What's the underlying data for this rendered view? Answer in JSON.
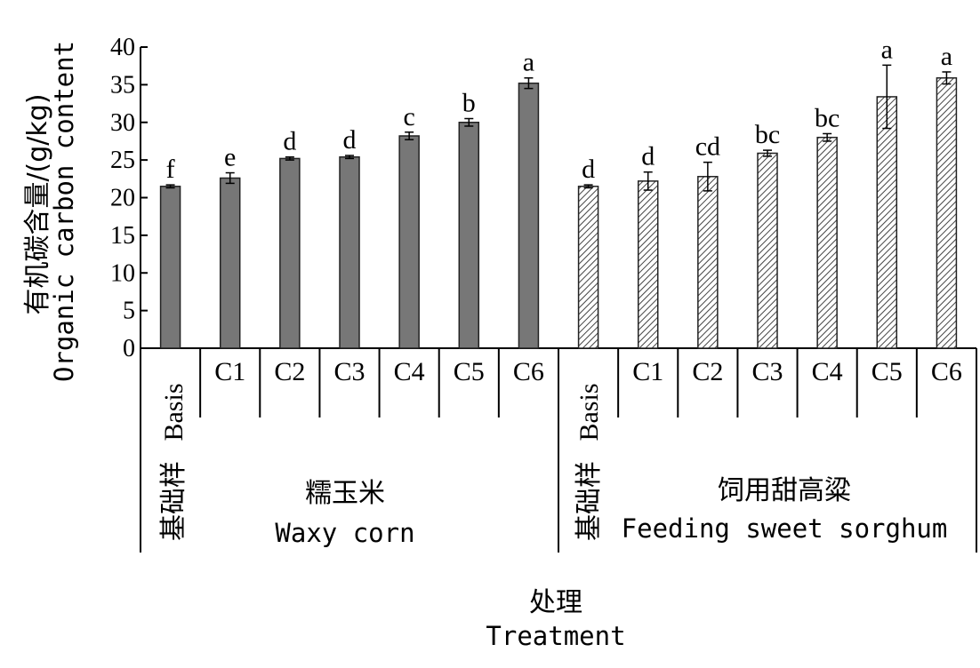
{
  "chart_data": {
    "type": "bar",
    "ylabel_cn": "有机碳含量/(g/kg)",
    "ylabel_en": "Organic carbon content",
    "xlabel_cn": "处理",
    "xlabel_en": "Treatment",
    "ylim": [
      0,
      40
    ],
    "yticks": [
      "0",
      "5",
      "10",
      "15",
      "20",
      "25",
      "30",
      "35",
      "40"
    ],
    "grid": false,
    "basis_label_cn": "基础样",
    "basis_label_en": "Basis",
    "groups": [
      {
        "name_cn": "糯玉米",
        "name_en": "Waxy corn",
        "fill": "#777777",
        "pattern": "solid",
        "categories": [
          "Basis",
          "C1",
          "C2",
          "C3",
          "C4",
          "C5",
          "C6"
        ],
        "values": [
          21.5,
          22.6,
          25.2,
          25.4,
          28.2,
          30.0,
          35.2
        ],
        "errors": [
          0.2,
          0.7,
          0.2,
          0.2,
          0.5,
          0.5,
          0.7
        ],
        "significance": [
          "f",
          "e",
          "d",
          "d",
          "c",
          "b",
          "a"
        ]
      },
      {
        "name_cn": "饲用甜高粱",
        "name_en": "Feeding sweet sorghum",
        "fill": "#ffffff",
        "pattern": "hatch",
        "categories": [
          "Basis",
          "C1",
          "C2",
          "C3",
          "C4",
          "C5",
          "C6"
        ],
        "values": [
          21.5,
          22.2,
          22.8,
          25.9,
          28.0,
          33.4,
          35.9
        ],
        "errors": [
          0.2,
          1.2,
          1.9,
          0.4,
          0.5,
          4.2,
          0.8
        ],
        "significance": [
          "d",
          "d",
          "cd",
          "bc",
          "bc",
          "a",
          "a"
        ]
      }
    ]
  }
}
